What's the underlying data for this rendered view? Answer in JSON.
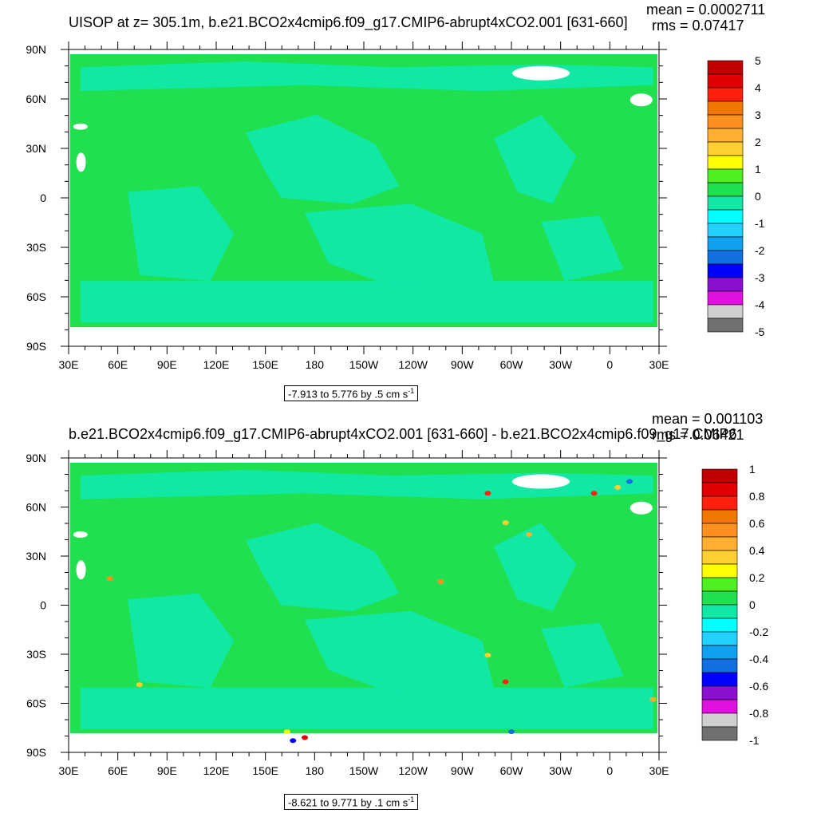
{
  "chart_data": [
    {
      "type": "heatmap",
      "title": "UISOP at z= 305.1m, b.e21.BCO2x4cmip6.f09_g17.CMIP6-abrupt4xCO2.001 [631-660]",
      "mean_text": "mean = 0.0002711",
      "rms_text": "rms = 0.07417",
      "range_text": "-7.913 to 5.776 by .5 cm s",
      "range_exp": "-1",
      "xticks": [
        "30E",
        "60E",
        "90E",
        "120E",
        "150E",
        "180",
        "150W",
        "120W",
        "90W",
        "60W",
        "30W",
        "0",
        "30E"
      ],
      "yticks": [
        "90N",
        "60N",
        "30N",
        "0",
        "30S",
        "60S",
        "90S"
      ],
      "colorbar": {
        "labels": [
          "5",
          "4",
          "3",
          "2",
          "1",
          "0",
          "-1",
          "-2",
          "-3",
          "-4",
          "-5"
        ],
        "colors": [
          "#c00000",
          "#e00000",
          "#ff2010",
          "#f07800",
          "#ff9020",
          "#ffb030",
          "#ffd030",
          "#ffff00",
          "#50f020",
          "#20e050",
          "#10e8a8",
          "#00ffff",
          "#20d0ff",
          "#10a0f0",
          "#1070e0",
          "#0000ff",
          "#8a10d0",
          "#e010e0",
          "#d0d0d0",
          "#707070"
        ]
      },
      "field_colors": {
        "land": "#ffffff",
        "ocean": "#20e050",
        "shallow": "#10e8a8"
      }
    },
    {
      "type": "heatmap",
      "title": "b.e21.BCO2x4cmip6.f09_g17.CMIP6-abrupt4xCO2.001 [631-660] - b.e21.BCO2x4cmip6.f09_g17.CMIP6",
      "mean_text": "mean = 0.001103",
      "rms_text": "rms = 0.06421",
      "range_text": "-8.621 to 9.771 by .1 cm s",
      "range_exp": "-1",
      "xticks": [
        "30E",
        "60E",
        "90E",
        "120E",
        "150E",
        "180",
        "150W",
        "120W",
        "90W",
        "60W",
        "30W",
        "0",
        "30E"
      ],
      "yticks": [
        "90N",
        "60N",
        "30N",
        "0",
        "30S",
        "60S",
        "90S"
      ],
      "colorbar": {
        "labels": [
          "1",
          "0.8",
          "0.6",
          "0.4",
          "0.2",
          "0",
          "-0.2",
          "-0.4",
          "-0.6",
          "-0.8",
          "-1"
        ],
        "colors": [
          "#c00000",
          "#e00000",
          "#ff2010",
          "#f07800",
          "#ff9020",
          "#ffb030",
          "#ffd030",
          "#ffff00",
          "#50f020",
          "#20e050",
          "#10e8a8",
          "#00ffff",
          "#20d0ff",
          "#10a0f0",
          "#1070e0",
          "#0000ff",
          "#8a10d0",
          "#e010e0",
          "#d0d0d0",
          "#707070"
        ]
      },
      "field_colors": {
        "land": "#ffffff",
        "ocean": "#20e050",
        "shallow": "#10e8a8"
      }
    }
  ]
}
